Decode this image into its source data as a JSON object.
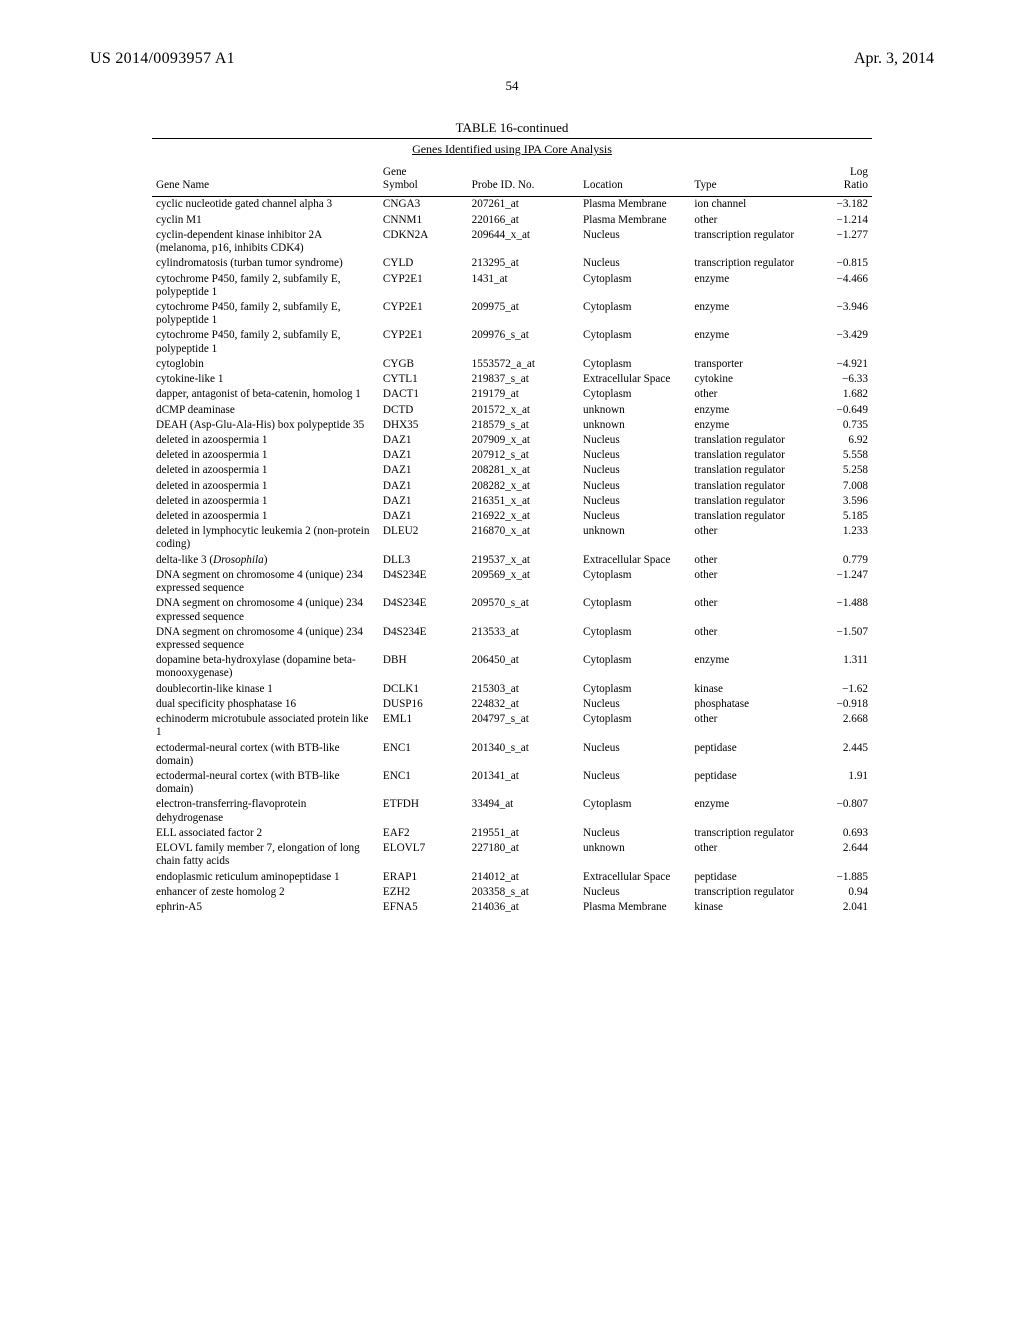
{
  "header": {
    "doc_id": "US 2014/0093957 A1",
    "date": "Apr. 3, 2014",
    "page_number": "54"
  },
  "table": {
    "title": "TABLE 16-continued",
    "subtitle": "Genes Identified using IPA Core Analysis",
    "columns": {
      "gene_name": "Gene Name",
      "gene_symbol_1": "Gene",
      "gene_symbol_2": "Symbol",
      "probe_id": "Probe ID. No.",
      "location": "Location",
      "type": "Type",
      "log_1": "Log",
      "log_2": "Ratio"
    },
    "rows": [
      {
        "name": "cyclic nucleotide gated channel alpha 3",
        "symbol": "CNGA3",
        "probe": "207261_at",
        "location": "Plasma Membrane",
        "type": "ion channel",
        "log": "−3.182"
      },
      {
        "name": "cyclin M1",
        "symbol": "CNNM1",
        "probe": "220166_at",
        "location": "Plasma Membrane",
        "type": "other",
        "log": "−1.214"
      },
      {
        "name": "cyclin-dependent kinase inhibitor 2A (melanoma, p16, inhibits CDK4)",
        "symbol": "CDKN2A",
        "probe": "209644_x_at",
        "location": "Nucleus",
        "type": "transcription regulator",
        "log": "−1.277"
      },
      {
        "name": "cylindromatosis (turban tumor syndrome)",
        "symbol": "CYLD",
        "probe": "213295_at",
        "location": "Nucleus",
        "type": "transcription regulator",
        "log": "−0.815"
      },
      {
        "name": "cytochrome P450, family 2, subfamily E, polypeptide 1",
        "symbol": "CYP2E1",
        "probe": "1431_at",
        "location": "Cytoplasm",
        "type": "enzyme",
        "log": "−4.466"
      },
      {
        "name": "cytochrome P450, family 2, subfamily E, polypeptide 1",
        "symbol": "CYP2E1",
        "probe": "209975_at",
        "location": "Cytoplasm",
        "type": "enzyme",
        "log": "−3.946"
      },
      {
        "name": "cytochrome P450, family 2, subfamily E, polypeptide 1",
        "symbol": "CYP2E1",
        "probe": "209976_s_at",
        "location": "Cytoplasm",
        "type": "enzyme",
        "log": "−3.429"
      },
      {
        "name": "cytoglobin",
        "symbol": "CYGB",
        "probe": "1553572_a_at",
        "location": "Cytoplasm",
        "type": "transporter",
        "log": "−4.921"
      },
      {
        "name": "cytokine-like 1",
        "symbol": "CYTL1",
        "probe": "219837_s_at",
        "location": "Extracellular Space",
        "type": "cytokine",
        "log": "−6.33"
      },
      {
        "name": "dapper, antagonist of beta-catenin, homolog 1",
        "symbol": "DACT1",
        "probe": "219179_at",
        "location": "Cytoplasm",
        "type": "other",
        "log": "1.682"
      },
      {
        "name": "dCMP deaminase",
        "symbol": "DCTD",
        "probe": "201572_x_at",
        "location": "unknown",
        "type": "enzyme",
        "log": "−0.649"
      },
      {
        "name": "DEAH (Asp-Glu-Ala-His) box polypeptide 35",
        "symbol": "DHX35",
        "probe": "218579_s_at",
        "location": "unknown",
        "type": "enzyme",
        "log": "0.735"
      },
      {
        "name": "deleted in azoospermia 1",
        "symbol": "DAZ1",
        "probe": "207909_x_at",
        "location": "Nucleus",
        "type": "translation regulator",
        "log": "6.92"
      },
      {
        "name": "deleted in azoospermia 1",
        "symbol": "DAZ1",
        "probe": "207912_s_at",
        "location": "Nucleus",
        "type": "translation regulator",
        "log": "5.558"
      },
      {
        "name": "deleted in azoospermia 1",
        "symbol": "DAZ1",
        "probe": "208281_x_at",
        "location": "Nucleus",
        "type": "translation regulator",
        "log": "5.258"
      },
      {
        "name": "deleted in azoospermia 1",
        "symbol": "DAZ1",
        "probe": "208282_x_at",
        "location": "Nucleus",
        "type": "translation regulator",
        "log": "7.008"
      },
      {
        "name": "deleted in azoospermia 1",
        "symbol": "DAZ1",
        "probe": "216351_x_at",
        "location": "Nucleus",
        "type": "translation regulator",
        "log": "3.596"
      },
      {
        "name": "deleted in azoospermia 1",
        "symbol": "DAZ1",
        "probe": "216922_x_at",
        "location": "Nucleus",
        "type": "translation regulator",
        "log": "5.185"
      },
      {
        "name": "deleted in lymphocytic leukemia 2 (non-protein coding)",
        "symbol": "DLEU2",
        "probe": "216870_x_at",
        "location": "unknown",
        "type": "other",
        "log": "1.233"
      },
      {
        "name": "delta-like 3 (<span class=\"italic\">Drosophila</span>)",
        "symbol": "DLL3",
        "probe": "219537_x_at",
        "location": "Extracellular Space",
        "type": "other",
        "log": "0.779",
        "html": true
      },
      {
        "name": "DNA segment on chromosome 4 (unique) 234 expressed sequence",
        "symbol": "D4S234E",
        "probe": "209569_x_at",
        "location": "Cytoplasm",
        "type": "other",
        "log": "−1.247"
      },
      {
        "name": "DNA segment on chromosome 4 (unique) 234 expressed sequence",
        "symbol": "D4S234E",
        "probe": "209570_s_at",
        "location": "Cytoplasm",
        "type": "other",
        "log": "−1.488"
      },
      {
        "name": "DNA segment on chromosome 4 (unique) 234 expressed sequence",
        "symbol": "D4S234E",
        "probe": "213533_at",
        "location": "Cytoplasm",
        "type": "other",
        "log": "−1.507"
      },
      {
        "name": "dopamine beta-hydroxylase (dopamine beta-monooxygenase)",
        "symbol": "DBH",
        "probe": "206450_at",
        "location": "Cytoplasm",
        "type": "enzyme",
        "log": "1.311"
      },
      {
        "name": "doublecortin-like kinase 1",
        "symbol": "DCLK1",
        "probe": "215303_at",
        "location": "Cytoplasm",
        "type": "kinase",
        "log": "−1.62"
      },
      {
        "name": "dual specificity phosphatase 16",
        "symbol": "DUSP16",
        "probe": "224832_at",
        "location": "Nucleus",
        "type": "phosphatase",
        "log": "−0.918"
      },
      {
        "name": "echinoderm microtubule associated protein like 1",
        "symbol": "EML1",
        "probe": "204797_s_at",
        "location": "Cytoplasm",
        "type": "other",
        "log": "2.668"
      },
      {
        "name": "ectodermal-neural cortex (with BTB-like domain)",
        "symbol": "ENC1",
        "probe": "201340_s_at",
        "location": "Nucleus",
        "type": "peptidase",
        "log": "2.445"
      },
      {
        "name": "ectodermal-neural cortex (with BTB-like domain)",
        "symbol": "ENC1",
        "probe": "201341_at",
        "location": "Nucleus",
        "type": "peptidase",
        "log": "1.91"
      },
      {
        "name": "electron-transferring-flavoprotein dehydrogenase",
        "symbol": "ETFDH",
        "probe": "33494_at",
        "location": "Cytoplasm",
        "type": "enzyme",
        "log": "−0.807"
      },
      {
        "name": "ELL associated factor 2",
        "symbol": "EAF2",
        "probe": "219551_at",
        "location": "Nucleus",
        "type": "transcription regulator",
        "log": "0.693"
      },
      {
        "name": "ELOVL family member 7, elongation of long chain fatty acids",
        "symbol": "ELOVL7",
        "probe": "227180_at",
        "location": "unknown",
        "type": "other",
        "log": "2.644"
      },
      {
        "name": "endoplasmic reticulum aminopeptidase 1",
        "symbol": "ERAP1",
        "probe": "214012_at",
        "location": "Extracellular Space",
        "type": "peptidase",
        "log": "−1.885"
      },
      {
        "name": "enhancer of zeste homolog 2",
        "symbol": "EZH2",
        "probe": "203358_s_at",
        "location": "Nucleus",
        "type": "transcription regulator",
        "log": "0.94"
      },
      {
        "name": "ephrin-A5",
        "symbol": "EFNA5",
        "probe": "214036_at",
        "location": "Plasma Membrane",
        "type": "kinase",
        "log": "2.041"
      }
    ]
  }
}
